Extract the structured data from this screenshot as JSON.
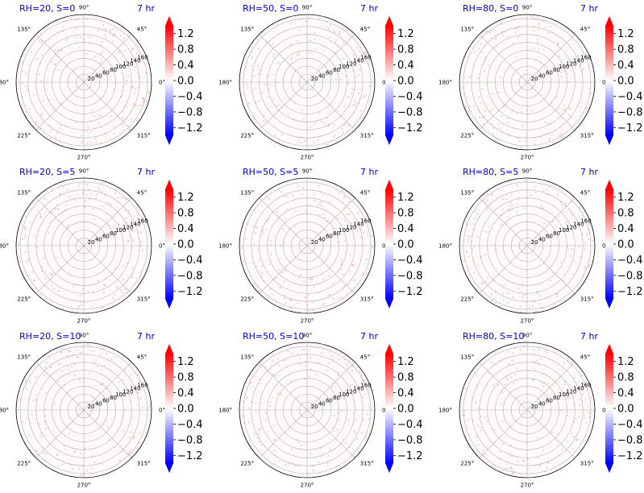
{
  "figure": {
    "time_label": "7 hr"
  },
  "chart_data": [
    {
      "type": "polar-heatmap",
      "title": "RH=20, S=0",
      "annotation": "7 hr",
      "rh": 20,
      "s": 0
    },
    {
      "type": "polar-heatmap",
      "title": "RH=50, S=0",
      "annotation": "7 hr",
      "rh": 50,
      "s": 0
    },
    {
      "type": "polar-heatmap",
      "title": "RH=80, S=0",
      "annotation": "7 hr",
      "rh": 80,
      "s": 0
    },
    {
      "type": "polar-heatmap",
      "title": "RH=20, S=5",
      "annotation": "7 hr",
      "rh": 20,
      "s": 5
    },
    {
      "type": "polar-heatmap",
      "title": "RH=50, S=5",
      "annotation": "7 hr",
      "rh": 50,
      "s": 5
    },
    {
      "type": "polar-heatmap",
      "title": "RH=80, S=5",
      "annotation": "7 hr",
      "rh": 80,
      "s": 5
    },
    {
      "type": "polar-heatmap",
      "title": "RH=20, S=10",
      "annotation": "7 hr",
      "rh": 20,
      "s": 10
    },
    {
      "type": "polar-heatmap",
      "title": "RH=50, S=10",
      "annotation": "7 hr",
      "rh": 50,
      "s": 10
    },
    {
      "type": "polar-heatmap",
      "title": "RH=80, S=10",
      "annotation": "7 hr",
      "rh": 80,
      "s": 10
    }
  ],
  "polar_axes": {
    "angle_ticks": [
      "0°",
      "45°",
      "90°",
      "135°",
      "180°",
      "225°",
      "270°",
      "315°"
    ],
    "angle_values_deg": [
      0,
      45,
      90,
      135,
      180,
      225,
      270,
      315
    ],
    "radial_ticks": [
      "20",
      "40",
      "60",
      "80",
      "100",
      "120",
      "140",
      "160"
    ],
    "radial_values": [
      20,
      40,
      60,
      80,
      100,
      120,
      140,
      160
    ],
    "r_max": 170,
    "radial_label_angle_deg": 22.5,
    "grid": true
  },
  "colorbar": {
    "cmap": "bwr",
    "vmin": -1.4,
    "vmax": 1.4,
    "ticks": [
      "1.2",
      "0.8",
      "0.4",
      "0.0",
      "−0.4",
      "−0.8",
      "−1.2"
    ],
    "tick_values": [
      1.2,
      0.8,
      0.4,
      0.0,
      -0.4,
      -0.8,
      -1.2
    ],
    "extend": "both",
    "color_low": "#0000ff",
    "color_mid": "#ffffff",
    "color_high": "#ff0000"
  },
  "colors": {
    "title": "#0000cc",
    "grid": "#b0b0b0",
    "axis_line": "#000000",
    "speckle_positive": "#f4a0a0",
    "speckle_negative": "#a8b8f0"
  }
}
